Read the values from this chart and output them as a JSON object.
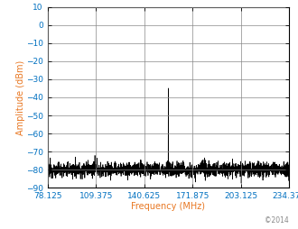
{
  "xlabel": "Frequency (MHz)",
  "ylabel": "Amplitude (dBm)",
  "xlim": [
    78.125,
    234.375
  ],
  "ylim": [
    -90,
    10
  ],
  "xticks": [
    78.125,
    109.375,
    140.625,
    171.875,
    203.125,
    234.375
  ],
  "yticks": [
    -90,
    -80,
    -70,
    -60,
    -50,
    -40,
    -30,
    -20,
    -10,
    0,
    10
  ],
  "noise_floor": -80,
  "noise_std": 2.0,
  "main_carrier_freq": 156.25,
  "main_carrier_amp": -35,
  "spur1_freq": 96.0,
  "spur1_amp": -73,
  "copyright": "©2014",
  "line_color": "#000000",
  "background_color": "#ffffff",
  "xlabel_color": "#e87722",
  "ylabel_color": "#e87722",
  "tick_label_color": "#0070c0",
  "grid_color": "#888888",
  "axis_fontsize": 7,
  "tick_fontsize": 6.5,
  "copyright_fontsize": 5.5,
  "copyright_color": "#888888"
}
